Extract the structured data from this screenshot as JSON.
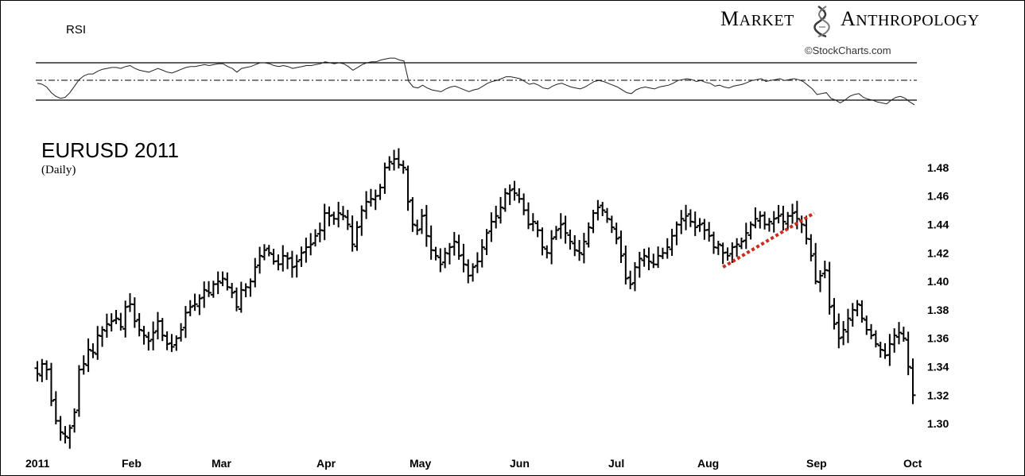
{
  "rsi_panel": {
    "label": "RSI"
  },
  "brand": {
    "word1_initial": "M",
    "word1_rest": "ARKET",
    "word2_initial": "A",
    "word2_rest": "NTHROPOLOGY",
    "credit": "©StockCharts.com"
  },
  "chart_data": {
    "type": "ohlc",
    "title": "EURUSD 2011",
    "subtitle": "(Daily)",
    "ylim": [
      1.285,
      1.495
    ],
    "y_ticks": [
      "1.30",
      "1.32",
      "1.34",
      "1.36",
      "1.38",
      "1.40",
      "1.42",
      "1.44",
      "1.46",
      "1.48"
    ],
    "x_ticks": [
      "2011",
      "Feb",
      "Mar",
      "Apr",
      "May",
      "Jun",
      "Jul",
      "Aug",
      "Sep",
      "Oct"
    ],
    "closes": [
      1.335,
      1.342,
      1.338,
      1.316,
      1.302,
      1.294,
      1.291,
      1.297,
      1.308,
      1.338,
      1.342,
      1.352,
      1.35,
      1.362,
      1.366,
      1.37,
      1.372,
      1.374,
      1.368,
      1.382,
      1.384,
      1.372,
      1.366,
      1.362,
      1.358,
      1.364,
      1.372,
      1.362,
      1.356,
      1.354,
      1.36,
      1.366,
      1.378,
      1.382,
      1.384,
      1.388,
      1.394,
      1.392,
      1.398,
      1.4,
      1.402,
      1.396,
      1.392,
      1.382,
      1.394,
      1.396,
      1.4,
      1.41,
      1.418,
      1.422,
      1.42,
      1.414,
      1.412,
      1.418,
      1.416,
      1.41,
      1.414,
      1.42,
      1.424,
      1.426,
      1.432,
      1.436,
      1.448,
      1.446,
      1.444,
      1.448,
      1.446,
      1.44,
      1.426,
      1.438,
      1.45,
      1.456,
      1.458,
      1.46,
      1.466,
      1.48,
      1.484,
      1.486,
      1.482,
      1.48,
      1.456,
      1.44,
      1.436,
      1.446,
      1.432,
      1.422,
      1.418,
      1.412,
      1.42,
      1.424,
      1.428,
      1.418,
      1.412,
      1.404,
      1.41,
      1.414,
      1.424,
      1.434,
      1.442,
      1.446,
      1.452,
      1.462,
      1.464,
      1.462,
      1.458,
      1.45,
      1.44,
      1.442,
      1.436,
      1.424,
      1.42,
      1.43,
      1.436,
      1.44,
      1.434,
      1.428,
      1.422,
      1.42,
      1.428,
      1.438,
      1.448,
      1.452,
      1.45,
      1.444,
      1.438,
      1.43,
      1.418,
      1.402,
      1.398,
      1.41,
      1.416,
      1.418,
      1.414,
      1.412,
      1.418,
      1.42,
      1.424,
      1.432,
      1.44,
      1.444,
      1.446,
      1.442,
      1.438,
      1.44,
      1.436,
      1.432,
      1.424,
      1.426,
      1.42,
      1.418,
      1.424,
      1.426,
      1.428,
      1.434,
      1.44,
      1.444,
      1.446,
      1.44,
      1.442,
      1.444,
      1.446,
      1.442,
      1.446,
      1.448,
      1.444,
      1.44,
      1.43,
      1.418,
      1.4,
      1.404,
      1.408,
      1.382,
      1.37,
      1.36,
      1.366,
      1.374,
      1.38,
      1.384,
      1.374,
      1.366,
      1.362,
      1.356,
      1.352,
      1.348,
      1.356,
      1.362,
      1.364,
      1.36,
      1.34,
      1.32
    ],
    "trendline": {
      "start": {
        "day": "Aug 04",
        "value": 1.41
      },
      "end": {
        "day": "Aug 31",
        "value": 1.448
      },
      "color": "#cc2b1e"
    },
    "rsi": {
      "ylim": [
        0,
        100
      ],
      "levels": [
        70,
        50,
        30
      ],
      "values": [
        48,
        47,
        44,
        38,
        34,
        32,
        33,
        38,
        45,
        52,
        56,
        58,
        58,
        61,
        63,
        64,
        65,
        65,
        64,
        66,
        67,
        64,
        62,
        61,
        60,
        62,
        64,
        62,
        60,
        59,
        61,
        63,
        65,
        66,
        66,
        67,
        68,
        67,
        68,
        69,
        69,
        66,
        64,
        60,
        64,
        65,
        66,
        68,
        70,
        70,
        69,
        67,
        66,
        67,
        66,
        64,
        65,
        66,
        67,
        67,
        68,
        69,
        71,
        70,
        69,
        70,
        69,
        66,
        62,
        65,
        68,
        70,
        71,
        71,
        73,
        74,
        75,
        75,
        73,
        72,
        50,
        44,
        43,
        46,
        43,
        41,
        40,
        39,
        42,
        44,
        45,
        43,
        41,
        39,
        41,
        42,
        45,
        48,
        50,
        51,
        53,
        55,
        55,
        54,
        53,
        50,
        47,
        48,
        46,
        43,
        42,
        45,
        47,
        48,
        46,
        44,
        43,
        42,
        44,
        47,
        50,
        51,
        50,
        48,
        46,
        44,
        41,
        38,
        37,
        41,
        43,
        44,
        43,
        42,
        44,
        45,
        46,
        48,
        51,
        52,
        53,
        52,
        50,
        51,
        49,
        48,
        45,
        46,
        44,
        43,
        45,
        46,
        47,
        49,
        51,
        52,
        53,
        50,
        51,
        52,
        53,
        51,
        52,
        53,
        52,
        50,
        46,
        42,
        36,
        37,
        38,
        32,
        30,
        27,
        30,
        34,
        36,
        37,
        33,
        31,
        30,
        28,
        27,
        26,
        30,
        33,
        34,
        32,
        28,
        25
      ]
    }
  }
}
